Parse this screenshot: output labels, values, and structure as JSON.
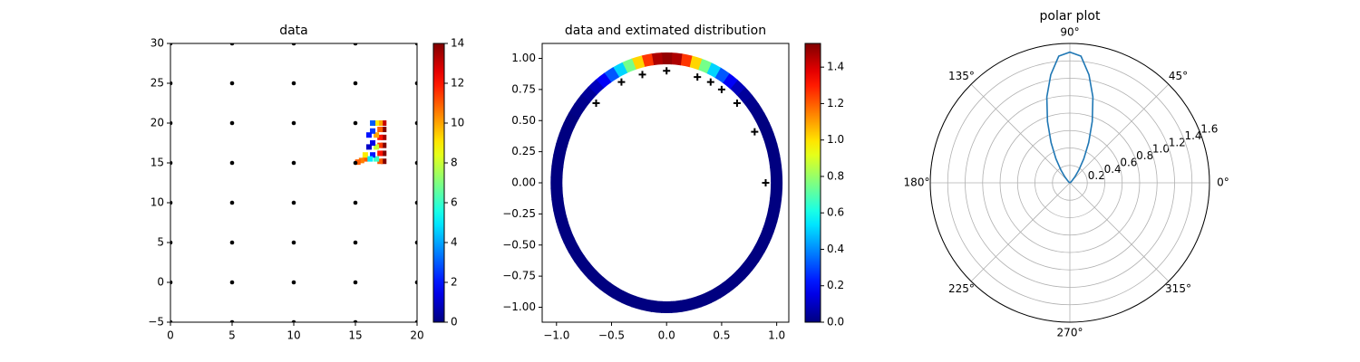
{
  "chart_data": [
    {
      "type": "scatter",
      "title": "data",
      "xlim": [
        0,
        20
      ],
      "ylim": [
        -5,
        30
      ],
      "xticks": [
        0,
        5,
        10,
        15,
        20
      ],
      "yticks": [
        {
          "value": -5,
          "label": "−5"
        },
        0,
        5,
        10,
        15,
        20,
        25,
        30
      ],
      "series": [
        {
          "color": "#000000",
          "x": [
            0,
            5,
            10,
            15,
            20,
            0,
            5,
            10,
            15,
            20,
            0,
            5,
            10,
            15,
            20,
            0,
            5,
            10,
            15,
            20,
            0,
            5,
            10,
            15,
            20,
            0,
            5,
            10,
            15,
            20,
            0,
            5,
            10,
            15,
            20,
            0,
            5,
            10,
            15,
            20
          ],
          "y": [
            -5,
            -5,
            -5,
            -5,
            -5,
            0,
            0,
            0,
            0,
            0,
            5,
            5,
            5,
            5,
            5,
            10,
            10,
            10,
            10,
            10,
            15,
            15,
            15,
            15,
            15,
            20,
            20,
            20,
            20,
            20,
            25,
            25,
            25,
            25,
            25,
            30,
            30,
            30,
            30,
            30
          ]
        },
        {
          "x": [
            17.3,
            17.3,
            17.3,
            17.3,
            17.3,
            17.3,
            17.0,
            17.0,
            17.0,
            17.0,
            17.0,
            17.0,
            16.7,
            16.7,
            16.7,
            16.7,
            16.4,
            16.4,
            16.4,
            16.4,
            16.1,
            16.1,
            15.8,
            15.5,
            15.2,
            15.8,
            16.2
          ],
          "y": [
            15.2,
            16.2,
            17.2,
            18.2,
            19.2,
            20.0,
            15.2,
            16.2,
            17.2,
            18.2,
            19.2,
            20.0,
            15.5,
            17.0,
            18.5,
            20.0,
            16.0,
            17.5,
            19.0,
            20.0,
            17.0,
            18.5,
            15.5,
            15.3,
            15.1,
            16.0,
            15.5
          ],
          "values": [
            14,
            14,
            14,
            13.5,
            14,
            13,
            11,
            12,
            11.5,
            12,
            11,
            10,
            6,
            8,
            10,
            9,
            2,
            1.5,
            2.5,
            3,
            1,
            2,
            11,
            10.5,
            11,
            9,
            5
          ]
        }
      ],
      "colorbar": {
        "lim": [
          0,
          14
        ],
        "ticks": [
          0,
          2,
          4,
          6,
          8,
          10,
          12,
          14
        ],
        "colormap": "jet"
      }
    },
    {
      "type": "ring",
      "title": "data and extimated distribution",
      "xlim": [
        -1.13,
        1.11
      ],
      "ylim": [
        -1.12,
        1.12
      ],
      "xticks": [
        {
          "value": -1.0,
          "label": "−1.0"
        },
        {
          "value": -0.5,
          "label": "−0.5"
        },
        {
          "value": 0,
          "label": "0.0"
        },
        0.5,
        {
          "value": 1.0,
          "label": "1.0"
        }
      ],
      "yticks": [
        {
          "value": -1.0,
          "label": "−1.00"
        },
        {
          "value": -0.75,
          "label": "−0.75"
        },
        {
          "value": -0.5,
          "label": "−0.50"
        },
        {
          "value": -0.25,
          "label": "−0.25"
        },
        {
          "value": 0,
          "label": "0.00"
        },
        0.25,
        {
          "value": 0.5,
          "label": "0.50"
        },
        0.75,
        {
          "value": 1.0,
          "label": "1.00"
        }
      ],
      "ring": {
        "theta": [
          0,
          5,
          10,
          15,
          20,
          25,
          30,
          35,
          40,
          45,
          50,
          55,
          60,
          65,
          70,
          75,
          80,
          85,
          90,
          95,
          100,
          105,
          110,
          115,
          120,
          125,
          130,
          135,
          140,
          145,
          150,
          155,
          160,
          165,
          170,
          175,
          180,
          185,
          190,
          195,
          200,
          205,
          210,
          215,
          220,
          225,
          230,
          235,
          240,
          245,
          250,
          255,
          260,
          265,
          270,
          275,
          280,
          285,
          290,
          295,
          300,
          305,
          310,
          315,
          320,
          325,
          330,
          335,
          340,
          345,
          350,
          355
        ],
        "values": [
          0,
          0,
          0,
          0,
          0,
          0,
          0,
          0.01,
          0.02,
          0.04,
          0.09,
          0.18,
          0.32,
          0.51,
          0.75,
          1.02,
          1.26,
          1.46,
          1.5,
          1.46,
          1.26,
          1.02,
          0.75,
          0.51,
          0.32,
          0.18,
          0.09,
          0.04,
          0.02,
          0.01,
          0,
          0,
          0,
          0,
          0,
          0,
          0,
          0,
          0,
          0,
          0,
          0,
          0,
          0,
          0,
          0,
          0,
          0,
          0,
          0,
          0,
          0,
          0,
          0,
          0,
          0,
          0,
          0,
          0,
          0,
          0,
          0,
          0,
          0,
          0,
          0,
          0,
          0,
          0,
          0,
          0,
          0
        ]
      },
      "markers": {
        "color": "#000000",
        "x": [
          -0.64,
          -0.41,
          -0.22,
          0,
          0.28,
          0.4,
          0.5,
          0.64,
          0.8,
          0.9
        ],
        "y": [
          0.64,
          0.81,
          0.87,
          0.9,
          0.85,
          0.81,
          0.75,
          0.64,
          0.41,
          0
        ]
      },
      "colorbar": {
        "lim": [
          0,
          1.53
        ],
        "ticks": [
          {
            "value": 0,
            "label": "0.0"
          },
          0.2,
          0.4,
          0.6,
          0.8,
          {
            "value": 1.0,
            "label": "1.0"
          },
          1.2,
          1.4
        ],
        "colormap": "jet"
      }
    },
    {
      "type": "polar",
      "title": "polar plot",
      "color": "#1f77b4",
      "rlim": [
        0,
        1.6
      ],
      "rticks": [
        0.2,
        0.4,
        0.6,
        0.8,
        {
          "value": 1.0,
          "label": "1.0"
        },
        1.2,
        1.4,
        1.6
      ],
      "thetaticks": [
        {
          "value": 0,
          "label": "0°"
        },
        {
          "value": 45,
          "label": "45°"
        },
        {
          "value": 90,
          "label": "90°"
        },
        {
          "value": 135,
          "label": "135°"
        },
        {
          "value": 180,
          "label": "180°"
        },
        {
          "value": 225,
          "label": "225°"
        },
        {
          "value": 270,
          "label": "270°"
        },
        {
          "value": 315,
          "label": "315°"
        }
      ],
      "theta": [
        0,
        5,
        10,
        15,
        20,
        25,
        30,
        35,
        40,
        45,
        50,
        55,
        60,
        65,
        70,
        75,
        80,
        85,
        90,
        95,
        100,
        105,
        110,
        115,
        120,
        125,
        130,
        135,
        140,
        145,
        150,
        155,
        160,
        165,
        170,
        175,
        180,
        185,
        190,
        195,
        200,
        205,
        210,
        215,
        220,
        225,
        230,
        235,
        240,
        245,
        250,
        255,
        260,
        265,
        270,
        275,
        280,
        285,
        290,
        295,
        300,
        305,
        310,
        315,
        320,
        325,
        330,
        335,
        340,
        345,
        350,
        355
      ],
      "r": [
        0,
        0,
        0,
        0,
        0,
        0,
        0,
        0.01,
        0.02,
        0.04,
        0.09,
        0.18,
        0.32,
        0.51,
        0.75,
        1.02,
        1.26,
        1.46,
        1.5,
        1.46,
        1.26,
        1.02,
        0.75,
        0.51,
        0.32,
        0.18,
        0.09,
        0.04,
        0.02,
        0.01,
        0,
        0,
        0,
        0,
        0,
        0,
        0,
        0,
        0,
        0,
        0,
        0,
        0,
        0,
        0,
        0,
        0,
        0,
        0,
        0,
        0,
        0,
        0,
        0,
        0,
        0,
        0,
        0,
        0,
        0,
        0,
        0,
        0,
        0,
        0,
        0,
        0,
        0,
        0,
        0,
        0,
        0
      ]
    }
  ]
}
